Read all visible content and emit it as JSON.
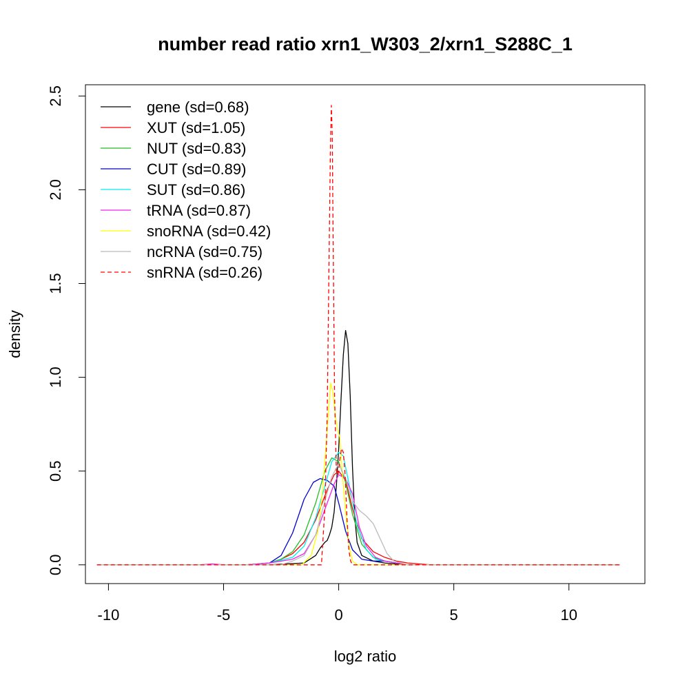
{
  "chart_data": {
    "type": "line",
    "title": "number read ratio xrn1_W303_2/xrn1_S288C_1",
    "xlabel": "log2 ratio",
    "ylabel": "density",
    "xlim": [
      -11,
      13.3
    ],
    "ylim": [
      -0.1,
      2.56
    ],
    "x_ticks": [
      -10,
      -5,
      0,
      5,
      10
    ],
    "x_tick_labels": [
      "-10",
      "-5",
      "0",
      "5",
      "10"
    ],
    "y_ticks": [
      0.0,
      0.5,
      1.0,
      1.5,
      2.0,
      2.5
    ],
    "y_tick_labels": [
      "0.0",
      "0.5",
      "1.0",
      "1.5",
      "2.0",
      "2.5"
    ],
    "grid": false,
    "legend_position": "top-left",
    "series": [
      {
        "name": "gene (sd=0.68)",
        "color": "#000000",
        "dash": "solid",
        "x": [
          -10.5,
          -3.0,
          -1.5,
          -1.0,
          -0.8,
          -0.6,
          -0.5,
          -0.4,
          -0.3,
          -0.2,
          -0.1,
          0.0,
          0.1,
          0.2,
          0.3,
          0.4,
          0.5,
          0.6,
          0.7,
          0.8,
          1.0,
          1.5,
          2.0,
          3.0,
          12.2
        ],
        "y": [
          0.0,
          0.0,
          0.01,
          0.05,
          0.09,
          0.12,
          0.13,
          0.16,
          0.2,
          0.28,
          0.42,
          0.62,
          0.88,
          1.12,
          1.25,
          1.18,
          0.9,
          0.52,
          0.25,
          0.12,
          0.05,
          0.02,
          0.01,
          0.0,
          0.0
        ]
      },
      {
        "name": "XUT (sd=1.05)",
        "color": "#ff0000",
        "dash": "solid",
        "x": [
          -10.5,
          -5.5,
          -5.0,
          -4.0,
          -3.0,
          -2.5,
          -2.0,
          -1.5,
          -1.0,
          -0.5,
          -0.2,
          0.0,
          0.3,
          0.6,
          1.0,
          1.5,
          2.0,
          2.5,
          3.0,
          4.0,
          12.2
        ],
        "y": [
          0.0,
          0.0,
          0.0,
          0.0,
          0.01,
          0.03,
          0.06,
          0.12,
          0.24,
          0.4,
          0.48,
          0.5,
          0.45,
          0.3,
          0.14,
          0.07,
          0.04,
          0.02,
          0.01,
          0.0,
          0.0
        ]
      },
      {
        "name": "NUT (sd=0.83)",
        "color": "#22bb22",
        "dash": "solid",
        "x": [
          -10.5,
          -4.0,
          -3.0,
          -2.5,
          -2.0,
          -1.5,
          -1.0,
          -0.6,
          -0.3,
          0.0,
          0.3,
          0.6,
          1.0,
          1.5,
          2.0,
          2.5,
          3.0,
          12.2
        ],
        "y": [
          0.0,
          0.0,
          0.01,
          0.03,
          0.07,
          0.16,
          0.33,
          0.5,
          0.57,
          0.55,
          0.44,
          0.27,
          0.11,
          0.04,
          0.02,
          0.01,
          0.0,
          0.0
        ]
      },
      {
        "name": "CUT (sd=0.89)",
        "color": "#0000cc",
        "dash": "solid",
        "x": [
          -10.5,
          -4.0,
          -3.0,
          -2.5,
          -2.0,
          -1.5,
          -1.1,
          -0.8,
          -0.5,
          -0.2,
          0.0,
          0.3,
          0.6,
          1.0,
          1.5,
          2.0,
          2.5,
          3.0,
          12.2
        ],
        "y": [
          0.0,
          0.0,
          0.01,
          0.05,
          0.17,
          0.35,
          0.44,
          0.46,
          0.45,
          0.42,
          0.33,
          0.18,
          0.08,
          0.03,
          0.02,
          0.02,
          0.01,
          0.0,
          0.0
        ]
      },
      {
        "name": "SUT (sd=0.86)",
        "color": "#00eeee",
        "dash": "solid",
        "x": [
          -10.5,
          -4.0,
          -3.0,
          -2.0,
          -1.5,
          -1.0,
          -0.6,
          -0.3,
          0.0,
          0.2,
          0.5,
          0.8,
          1.2,
          1.6,
          2.0,
          2.5,
          3.0,
          12.2
        ],
        "y": [
          0.0,
          0.0,
          0.01,
          0.04,
          0.1,
          0.25,
          0.42,
          0.55,
          0.6,
          0.58,
          0.4,
          0.21,
          0.08,
          0.03,
          0.02,
          0.01,
          0.0,
          0.0
        ]
      },
      {
        "name": "tRNA (sd=0.87)",
        "color": "#ee22ee",
        "dash": "solid",
        "x": [
          -10.5,
          -6.0,
          -5.5,
          -5.0,
          -4.0,
          -3.0,
          -2.0,
          -1.5,
          -1.0,
          -0.5,
          -0.2,
          0.0,
          0.3,
          0.6,
          0.9,
          1.2,
          1.6,
          2.0,
          2.5,
          3.0,
          12.2
        ],
        "y": [
          0.0,
          0.0,
          0.005,
          0.0,
          0.0,
          0.01,
          0.03,
          0.06,
          0.16,
          0.33,
          0.43,
          0.48,
          0.46,
          0.38,
          0.2,
          0.1,
          0.04,
          0.02,
          0.01,
          0.0,
          0.0
        ]
      },
      {
        "name": "snoRNA (sd=0.42)",
        "color": "#ffff00",
        "dash": "solid",
        "x": [
          -10.5,
          -1.6,
          -1.2,
          -0.9,
          -0.7,
          -0.5,
          -0.35,
          -0.25,
          -0.15,
          -0.05,
          0.05,
          0.15,
          0.3,
          0.45,
          0.6,
          0.8,
          1.0,
          12.2
        ],
        "y": [
          0.0,
          0.0,
          0.05,
          0.18,
          0.4,
          0.72,
          0.97,
          0.92,
          0.8,
          0.72,
          0.68,
          0.5,
          0.28,
          0.1,
          0.02,
          0.0,
          0.0,
          0.0
        ]
      },
      {
        "name": "ncRNA (sd=0.75)",
        "color": "#bbbbbb",
        "dash": "solid",
        "x": [
          -10.5,
          -2.5,
          -2.0,
          -1.5,
          -1.0,
          -0.6,
          -0.3,
          0.0,
          0.3,
          0.6,
          0.9,
          1.2,
          1.5,
          1.8,
          2.1,
          2.4,
          2.7,
          3.0,
          12.2
        ],
        "y": [
          0.0,
          0.0,
          0.02,
          0.05,
          0.16,
          0.34,
          0.47,
          0.54,
          0.46,
          0.34,
          0.29,
          0.26,
          0.22,
          0.14,
          0.06,
          0.02,
          0.01,
          0.0,
          0.0
        ]
      },
      {
        "name": "snRNA (sd=0.26)",
        "color": "#ff0000",
        "dash": "dashed",
        "x": [
          -10.5,
          -0.75,
          -0.6,
          -0.5,
          -0.42,
          -0.36,
          -0.32,
          -0.28,
          -0.24,
          -0.18,
          -0.1,
          -0.02,
          0.05,
          0.12,
          0.2,
          0.28,
          0.36,
          0.44,
          0.52,
          0.6,
          0.7,
          12.2
        ],
        "y": [
          0.0,
          0.0,
          0.3,
          0.8,
          1.6,
          2.2,
          2.45,
          2.3,
          1.7,
          0.9,
          0.5,
          0.48,
          0.56,
          0.62,
          0.6,
          0.48,
          0.25,
          0.08,
          0.02,
          0.0,
          0.0,
          0.0
        ]
      }
    ]
  }
}
